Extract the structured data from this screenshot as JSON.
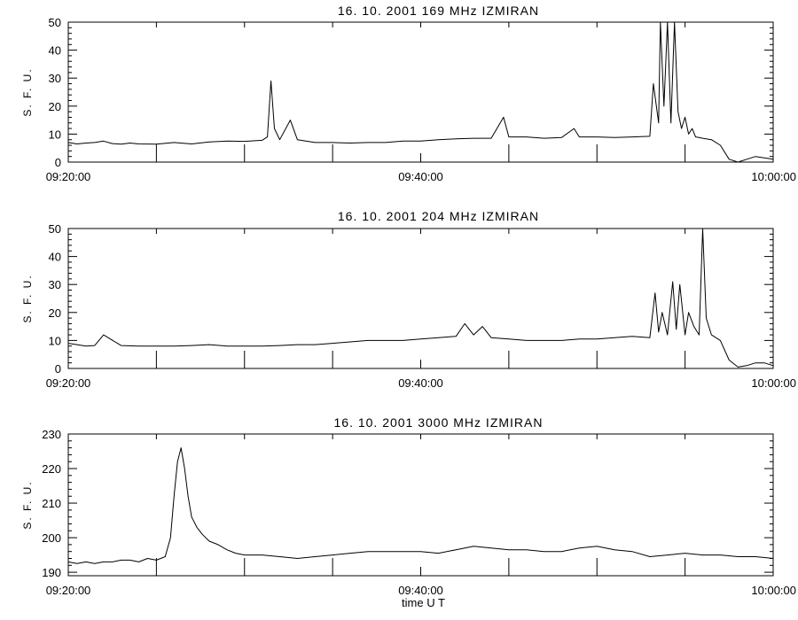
{
  "chart_data": [
    {
      "type": "line",
      "title": "16. 10. 2001   169 MHz   IZMIRAN",
      "ylabel": "S. F. U.",
      "xlabel": "",
      "ylim": [
        0,
        50
      ],
      "yticks": [
        0,
        10,
        20,
        30,
        40,
        50
      ],
      "x_range_minutes": [
        0,
        40
      ],
      "x_tick_labels": [
        "09:20:00",
        "09:40:00",
        "10:00:00"
      ],
      "x_tick_minutes": [
        0,
        20,
        40
      ],
      "x_minor_every_minutes": 5,
      "series": [
        {
          "x": [
            0,
            0.5,
            1,
            1.5,
            2,
            2.5,
            3,
            3.5,
            4,
            5,
            6,
            7,
            8,
            9,
            10,
            11,
            11.3,
            11.5,
            11.7,
            12,
            12.6,
            13,
            14,
            15,
            16,
            17,
            18,
            19,
            20,
            21,
            22,
            23,
            24,
            24.7,
            25,
            26,
            27,
            28,
            28.7,
            29,
            30,
            31,
            32,
            33,
            33.2,
            33.5,
            33.6,
            33.8,
            34,
            34.2,
            34.4,
            34.6,
            34.8,
            35,
            35.2,
            35.4,
            35.6,
            35.8,
            36,
            36.5,
            37,
            37.5,
            38,
            38.5,
            39,
            39.5,
            40
          ],
          "y": [
            7,
            6.5,
            6.8,
            7,
            7.5,
            6.6,
            6.4,
            6.8,
            6.5,
            6.4,
            7,
            6.5,
            7.2,
            7.5,
            7.4,
            7.8,
            9,
            29,
            12,
            8,
            15,
            8,
            7,
            7,
            6.8,
            7,
            7,
            7.5,
            7.5,
            8,
            8.3,
            8.5,
            8.5,
            16,
            9,
            9,
            8.5,
            8.8,
            12,
            9,
            9,
            8.8,
            9,
            9.2,
            28,
            14,
            50,
            20,
            50,
            14,
            50,
            18,
            12,
            16,
            10,
            12,
            9,
            8.8,
            8.5,
            8,
            6,
            1,
            0,
            1,
            2,
            1.5,
            1
          ]
        }
      ]
    },
    {
      "type": "line",
      "title": "16. 10. 2001   204 MHz   IZMIRAN",
      "ylabel": "S. F. U.",
      "xlabel": "",
      "ylim": [
        0,
        50
      ],
      "yticks": [
        0,
        10,
        20,
        30,
        40,
        50
      ],
      "x_range_minutes": [
        0,
        40
      ],
      "x_tick_labels": [
        "09:20:00",
        "09:40:00",
        "10:00:00"
      ],
      "x_tick_minutes": [
        0,
        20,
        40
      ],
      "x_minor_every_minutes": 5,
      "series": [
        {
          "x": [
            0,
            0.5,
            1,
            1.5,
            2,
            3,
            4,
            5,
            6,
            7,
            8,
            9,
            10,
            11,
            12,
            13,
            14,
            15,
            16,
            17,
            18,
            19,
            20,
            21,
            22,
            22.5,
            23,
            23.5,
            24,
            25,
            26,
            27,
            28,
            29,
            30,
            31,
            32,
            33,
            33.3,
            33.5,
            33.7,
            34,
            34.3,
            34.5,
            34.7,
            35,
            35.2,
            35.5,
            35.8,
            36,
            36.2,
            36.5,
            37,
            37.5,
            38,
            38.5,
            39,
            39.5,
            40
          ],
          "y": [
            9,
            8.5,
            8,
            8.2,
            12,
            8.2,
            8,
            8,
            8,
            8.2,
            8.5,
            8,
            8,
            8,
            8.2,
            8.5,
            8.5,
            9,
            9.5,
            10,
            10,
            10,
            10.5,
            11,
            11.5,
            16,
            12,
            15,
            11,
            10.5,
            10,
            10,
            10,
            10.5,
            10.5,
            11,
            11.5,
            11,
            27,
            13,
            20,
            12,
            31,
            14,
            30,
            12,
            20,
            15,
            12,
            50,
            18,
            12,
            10,
            3,
            0.5,
            1,
            2,
            2,
            1
          ]
        }
      ]
    },
    {
      "type": "line",
      "title": "16. 10. 2001   3000 MHz   IZMIRAN",
      "ylabel": "S. F. U.",
      "xlabel": "time  U T",
      "ylim": [
        189,
        230
      ],
      "yticks": [
        190,
        200,
        210,
        220,
        230
      ],
      "x_range_minutes": [
        0,
        40
      ],
      "x_tick_labels": [
        "09:20:00",
        "09:40:00",
        "10:00:00"
      ],
      "x_tick_minutes": [
        0,
        20,
        40
      ],
      "x_minor_every_minutes": 5,
      "series": [
        {
          "x": [
            0,
            0.5,
            1,
            1.5,
            2,
            2.5,
            3,
            3.5,
            4,
            4.5,
            5,
            5.5,
            5.8,
            6,
            6.2,
            6.4,
            6.6,
            6.8,
            7,
            7.3,
            7.6,
            8,
            8.5,
            9,
            9.5,
            10,
            11,
            12,
            13,
            14,
            15,
            16,
            17,
            18,
            19,
            20,
            21,
            22,
            23,
            24,
            25,
            26,
            27,
            28,
            29,
            30,
            31,
            32,
            33,
            34,
            35,
            36,
            37,
            38,
            39,
            40
          ],
          "y": [
            193,
            192.5,
            193,
            192.5,
            193,
            193,
            193.5,
            193.5,
            193,
            194,
            193.5,
            194.5,
            200,
            212,
            222,
            226,
            220,
            212,
            206,
            203,
            201,
            199,
            198,
            196.5,
            195.5,
            195,
            195,
            194.5,
            194,
            194.5,
            195,
            195.5,
            196,
            196,
            196,
            196,
            195.5,
            196.5,
            197.5,
            197,
            196.5,
            196.5,
            196,
            196,
            197,
            197.5,
            196.5,
            196,
            194.5,
            195,
            195.5,
            195,
            195,
            194.5,
            194.5,
            194
          ]
        }
      ]
    }
  ]
}
